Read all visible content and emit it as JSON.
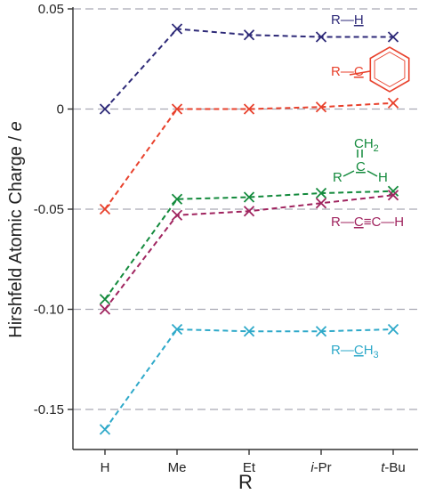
{
  "chart_data": {
    "type": "line",
    "xlabel": "R",
    "ylabel": "Hirshfeld Atomic Charge / ",
    "ylabel_italic": "e",
    "ylim": [
      -0.17,
      0.05
    ],
    "yticks": [
      {
        "v": 0.05,
        "label": "0.05"
      },
      {
        "v": 0.0,
        "label": "0"
      },
      {
        "v": -0.05,
        "label": "-0.05"
      },
      {
        "v": -0.1,
        "label": "-0.10"
      },
      {
        "v": -0.15,
        "label": "-0.15"
      }
    ],
    "categories": [
      "H",
      "Me",
      "Et",
      "i-Pr",
      "t-Bu"
    ],
    "category_labels": [
      {
        "prefix": "",
        "main": "H"
      },
      {
        "prefix": "",
        "main": "Me"
      },
      {
        "prefix": "",
        "main": "Et"
      },
      {
        "prefix": "i",
        "main": "-Pr"
      },
      {
        "prefix": "t",
        "main": "-Bu"
      }
    ],
    "grid": "horizontal dashed",
    "marker": "x",
    "series": [
      {
        "name": "R–H",
        "color": "#2e2a78",
        "values": [
          0.0,
          0.04,
          0.037,
          0.036,
          0.036
        ],
        "label_parts": [
          "R",
          "—",
          "H"
        ],
        "underline": "H"
      },
      {
        "name": "R–C(phenyl)",
        "color": "#e8412c",
        "values": [
          -0.05,
          0.0,
          0.0,
          0.001,
          0.003
        ],
        "label_parts": [
          "R",
          "—",
          "C"
        ],
        "underline": "C"
      },
      {
        "name": "R–C(=CH2)H",
        "color": "#138a3c",
        "values": [
          -0.095,
          -0.045,
          -0.044,
          -0.042,
          -0.041
        ],
        "label_parts": [
          "CH",
          "2",
          "R",
          "C",
          "H"
        ],
        "underline": "C"
      },
      {
        "name": "R–C≡C–H",
        "color": "#a0245f",
        "values": [
          -0.1,
          -0.053,
          -0.051,
          -0.047,
          -0.043
        ],
        "label_parts": [
          "R",
          "—",
          "C",
          "≡",
          "C",
          "—",
          "H"
        ],
        "underline": "C"
      },
      {
        "name": "R–CH3",
        "color": "#2ea9c9",
        "values": [
          -0.16,
          -0.11,
          -0.111,
          -0.111,
          -0.11
        ],
        "label_parts": [
          "R",
          "—",
          "C",
          "H",
          "3"
        ],
        "underline": "C"
      }
    ]
  }
}
